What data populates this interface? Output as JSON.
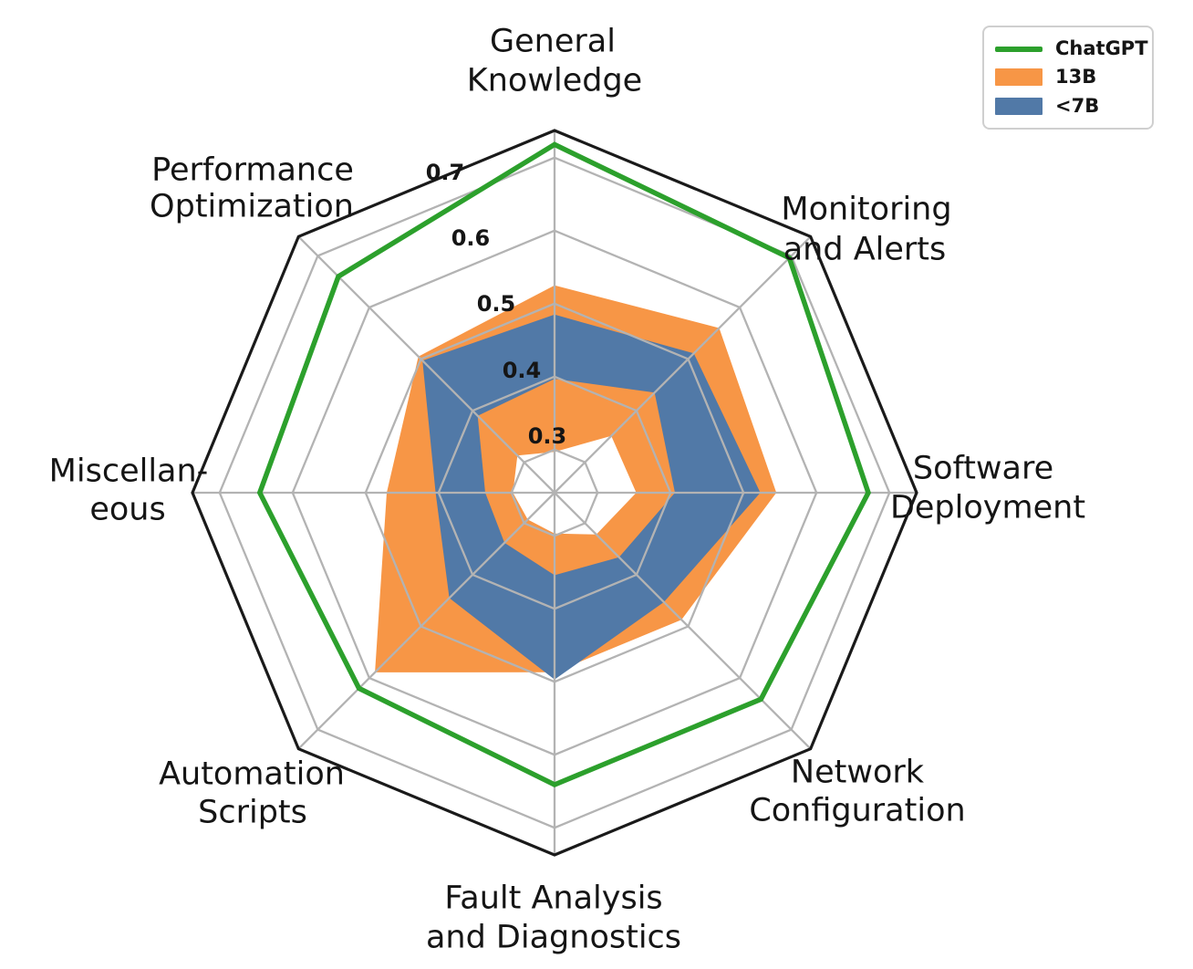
{
  "chart_data": {
    "type": "radar",
    "categories": [
      "General Knowledge",
      "Monitoring and Alerts",
      "Software Deployment",
      "Network Configuration",
      "Fault Analysis and Diagnostics",
      "Automation Scripts",
      "Miscellaneous",
      "Performance Optimization"
    ],
    "category_label_lines": [
      [
        "General",
        "Knowledge"
      ],
      [
        "Monitoring",
        "and Alerts"
      ],
      [
        "Software",
        "Deployment"
      ],
      [
        "Network",
        "Configuration"
      ],
      [
        "Fault Analysis",
        "and Diagnostics"
      ],
      [
        "Automation",
        "Scripts"
      ],
      [
        "Miscellan-",
        "eous"
      ],
      [
        "Performance",
        "Optimization"
      ]
    ],
    "axis_angles_deg": [
      90,
      45,
      0,
      315,
      270,
      225,
      180,
      135
    ],
    "r_ticks": [
      0.3,
      0.4,
      0.5,
      0.6,
      0.7
    ],
    "r_min": 0.241,
    "r_max": 0.7375,
    "grid_on": true,
    "legend_position": "upper right",
    "series": [
      {
        "name": "ChatGPT",
        "style": "line",
        "color": "#2CA02C",
        "values": [
          0.718,
          0.696,
          0.671,
          0.641,
          0.641,
          0.62,
          0.645,
          0.66
        ]
      },
      {
        "name": "13B",
        "style": "band",
        "color": "#F79646",
        "outer": [
          0.525,
          0.56,
          0.545,
          0.487,
          0.487,
          0.589,
          0.471,
          0.505
        ],
        "inner": [
          0.297,
          0.351,
          0.353,
          0.322,
          0.297,
          0.293,
          0.298,
          0.313
        ]
      },
      {
        "name": "<7B",
        "style": "band",
        "color": "#5179A7",
        "outer": [
          0.485,
          0.511,
          0.523,
          0.453,
          0.497,
          0.445,
          0.404,
          0.497
        ],
        "inner": [
          0.397,
          0.435,
          0.406,
          0.366,
          0.354,
          0.338,
          0.336,
          0.39
        ]
      }
    ]
  },
  "legend": {
    "items": [
      {
        "label": "ChatGPT",
        "swatch": "line",
        "color": "#2CA02C"
      },
      {
        "label": "13B",
        "swatch": "rect",
        "color": "#F79646"
      },
      {
        "label": "<7B",
        "swatch": "rect",
        "color": "#5179A7"
      }
    ]
  },
  "colors": {
    "grid": "#B3B3B3",
    "outer_frame": "#1A1A1A",
    "text": "#151515",
    "background": "#FFFFFF",
    "chatgpt_green": "#2CA02C",
    "band_13b_orange": "#F79646",
    "band_7b_blue": "#5179A7"
  }
}
